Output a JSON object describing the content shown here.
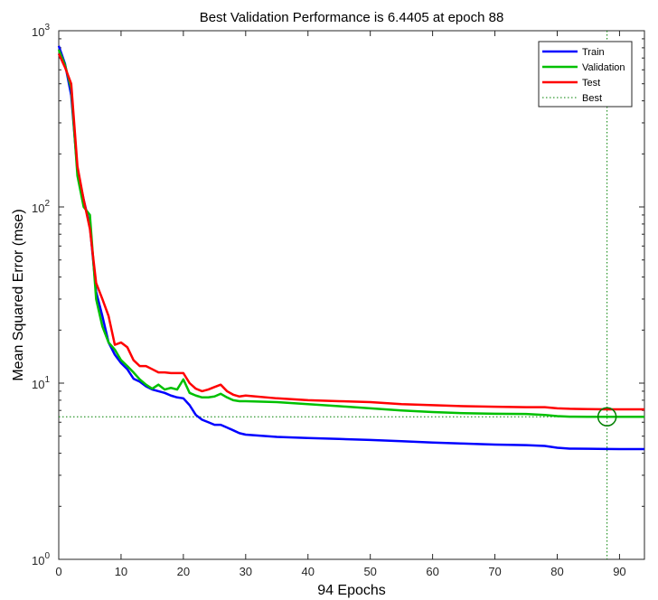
{
  "chart_data": {
    "type": "line",
    "title": "Best Validation Performance is 6.4405 at epoch 88",
    "xlabel": "94 Epochs",
    "ylabel": "Mean Squared Error  (mse)",
    "xlim": [
      0,
      94
    ],
    "ylim": [
      1,
      1000
    ],
    "yscale": "log",
    "x_ticks": [
      0,
      10,
      20,
      30,
      40,
      50,
      60,
      70,
      80,
      90
    ],
    "x_tick_labels": [
      "0",
      "10",
      "20",
      "30",
      "40",
      "50",
      "60",
      "70",
      "80",
      "90"
    ],
    "y_ticks": [
      1,
      10,
      100,
      1000
    ],
    "y_tick_labels": [
      {
        "base": "10",
        "exp": "0"
      },
      {
        "base": "10",
        "exp": "1"
      },
      {
        "base": "10",
        "exp": "2"
      },
      {
        "base": "10",
        "exp": "3"
      }
    ],
    "grid": false,
    "legend_position": "top-right",
    "best": {
      "epoch": 88,
      "value": 6.4405
    },
    "series": [
      {
        "name": "Train",
        "color": "#0000ff",
        "x": [
          0,
          1,
          2,
          3,
          4,
          5,
          6,
          7,
          8,
          9,
          10,
          11,
          12,
          13,
          14,
          15,
          16,
          17,
          18,
          19,
          20,
          21,
          22,
          23,
          24,
          25,
          26,
          27,
          28,
          29,
          30,
          35,
          40,
          45,
          50,
          55,
          60,
          65,
          70,
          75,
          78,
          80,
          82,
          85,
          88,
          90,
          94
        ],
        "y": [
          820,
          650,
          430,
          160,
          110,
          78,
          33,
          24,
          17,
          14.5,
          13,
          12,
          10.6,
          10.2,
          9.6,
          9.2,
          9,
          8.8,
          8.5,
          8.3,
          8.2,
          7.5,
          6.6,
          6.2,
          6,
          5.8,
          5.8,
          5.6,
          5.4,
          5.2,
          5.1,
          4.95,
          4.88,
          4.82,
          4.76,
          4.68,
          4.6,
          4.54,
          4.48,
          4.45,
          4.4,
          4.3,
          4.25,
          4.24,
          4.23,
          4.22,
          4.22
        ]
      },
      {
        "name": "Validation",
        "color": "#00c000",
        "x": [
          0,
          1,
          2,
          3,
          4,
          5,
          6,
          7,
          8,
          9,
          10,
          11,
          12,
          13,
          14,
          15,
          16,
          17,
          18,
          19,
          20,
          21,
          22,
          23,
          24,
          25,
          26,
          27,
          28,
          29,
          30,
          35,
          40,
          45,
          50,
          55,
          60,
          65,
          70,
          75,
          78,
          80,
          82,
          85,
          88,
          90,
          94
        ],
        "y": [
          780,
          640,
          470,
          150,
          100,
          90,
          30,
          21,
          17,
          15.5,
          13.5,
          12.5,
          11.5,
          10.5,
          9.8,
          9.3,
          9.8,
          9.2,
          9.4,
          9.2,
          10.5,
          8.8,
          8.5,
          8.3,
          8.3,
          8.4,
          8.7,
          8.3,
          8.0,
          7.9,
          7.9,
          7.8,
          7.6,
          7.4,
          7.2,
          7.0,
          6.85,
          6.75,
          6.7,
          6.68,
          6.6,
          6.5,
          6.45,
          6.44,
          6.4405,
          6.44,
          6.44
        ]
      },
      {
        "name": "Test",
        "color": "#ff0000",
        "x": [
          0,
          1,
          2,
          3,
          4,
          5,
          6,
          7,
          8,
          9,
          10,
          11,
          12,
          13,
          14,
          15,
          16,
          17,
          18,
          19,
          20,
          21,
          22,
          23,
          24,
          25,
          26,
          27,
          28,
          29,
          30,
          35,
          40,
          45,
          50,
          55,
          60,
          65,
          70,
          75,
          78,
          80,
          82,
          85,
          88,
          90,
          94
        ],
        "y": [
          740,
          620,
          500,
          170,
          110,
          75,
          37,
          30,
          24,
          16.5,
          17,
          16,
          13.5,
          12.5,
          12.5,
          12,
          11.5,
          11.5,
          11.4,
          11.4,
          11.4,
          10,
          9.3,
          9.0,
          9.2,
          9.5,
          9.8,
          9.0,
          8.6,
          8.4,
          8.5,
          8.2,
          8.0,
          7.9,
          7.8,
          7.6,
          7.5,
          7.4,
          7.35,
          7.3,
          7.3,
          7.2,
          7.15,
          7.12,
          7.1,
          7.1,
          7.1
        ]
      }
    ],
    "best_label": "Best",
    "best_line_color": "#008000"
  }
}
